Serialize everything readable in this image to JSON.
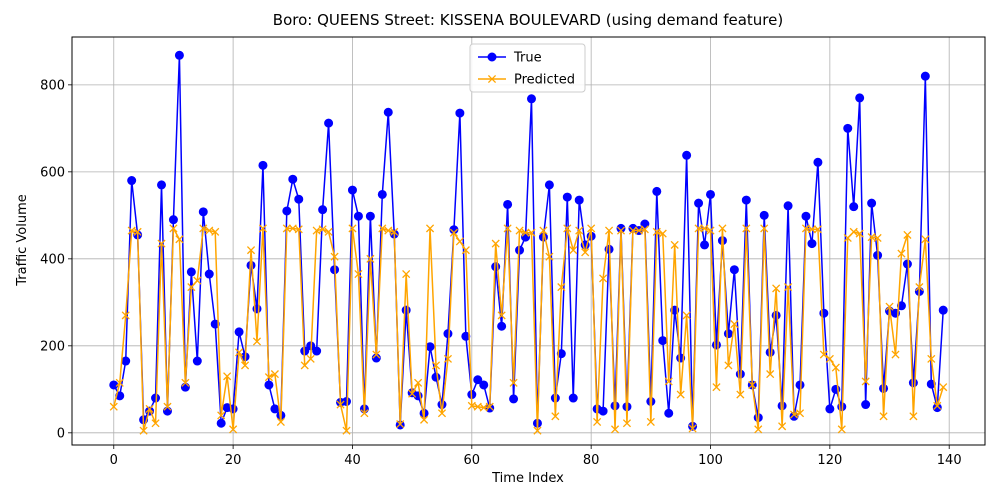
{
  "chart_data": {
    "type": "line",
    "title": "Boro: QUEENS Street: KISSENA BOULEVARD (using demand feature)",
    "xlabel": "Time Index",
    "ylabel": "Traffic Volume",
    "xlim": [
      -7,
      146
    ],
    "ylim": [
      -28,
      910
    ],
    "x_ticks": [
      0,
      20,
      40,
      60,
      80,
      100,
      120,
      140
    ],
    "y_ticks": [
      0,
      200,
      400,
      600,
      800
    ],
    "grid": true,
    "legend_position": "top-center",
    "series": [
      {
        "name": "True",
        "color": "#0000ff",
        "marker": "circle",
        "values": [
          110,
          85,
          165,
          580,
          455,
          30,
          50,
          80,
          570,
          50,
          490,
          868,
          105,
          370,
          165,
          508,
          365,
          250,
          22,
          58,
          55,
          232,
          175,
          385,
          285,
          615,
          110,
          55,
          40,
          510,
          583,
          537,
          188,
          200,
          188,
          513,
          712,
          375,
          70,
          72,
          558,
          498,
          55,
          498,
          172,
          548,
          737,
          457,
          18,
          282,
          92,
          85,
          45,
          198,
          128,
          65,
          228,
          467,
          735,
          222,
          88,
          122,
          110,
          57,
          382,
          245,
          525,
          78,
          420,
          450,
          768,
          22,
          450,
          570,
          80,
          182,
          542,
          80,
          535,
          432,
          452,
          55,
          50,
          422,
          62,
          470,
          60,
          470,
          465,
          480,
          72,
          555,
          212,
          45,
          282,
          172,
          638,
          15,
          528,
          432,
          548,
          202,
          442,
          228,
          375,
          135,
          535,
          110,
          35,
          500,
          185,
          270,
          62,
          522,
          38,
          110,
          498,
          435,
          622,
          275,
          55,
          100,
          60,
          700,
          520,
          770,
          65,
          528,
          408,
          102,
          280,
          275,
          292,
          388,
          115,
          325,
          820,
          112,
          58,
          282
        ]
      },
      {
        "name": "Predicted",
        "color": "#ffa500",
        "marker": "x",
        "values": [
          60,
          115,
          270,
          465,
          462,
          5,
          55,
          22,
          435,
          60,
          470,
          445,
          115,
          335,
          350,
          470,
          465,
          462,
          40,
          130,
          8,
          185,
          155,
          420,
          210,
          470,
          128,
          135,
          25,
          470,
          470,
          468,
          155,
          170,
          465,
          468,
          462,
          405,
          65,
          5,
          470,
          365,
          45,
          400,
          180,
          470,
          465,
          462,
          20,
          365,
          90,
          115,
          30,
          470,
          155,
          45,
          170,
          460,
          440,
          420,
          62,
          60,
          58,
          60,
          435,
          270,
          470,
          115,
          465,
          460,
          460,
          5,
          465,
          405,
          38,
          335,
          470,
          420,
          465,
          415,
          470,
          25,
          355,
          465,
          8,
          465,
          22,
          465,
          465,
          468,
          25,
          462,
          458,
          118,
          432,
          88,
          270,
          10,
          470,
          470,
          465,
          105,
          470,
          155,
          250,
          88,
          470,
          110,
          8,
          470,
          135,
          332,
          15,
          335,
          42,
          45,
          470,
          468,
          468,
          180,
          170,
          150,
          8,
          448,
          462,
          458,
          118,
          450,
          448,
          38,
          290,
          180,
          412,
          455,
          38,
          335,
          445,
          170,
          62,
          105
        ]
      }
    ]
  }
}
